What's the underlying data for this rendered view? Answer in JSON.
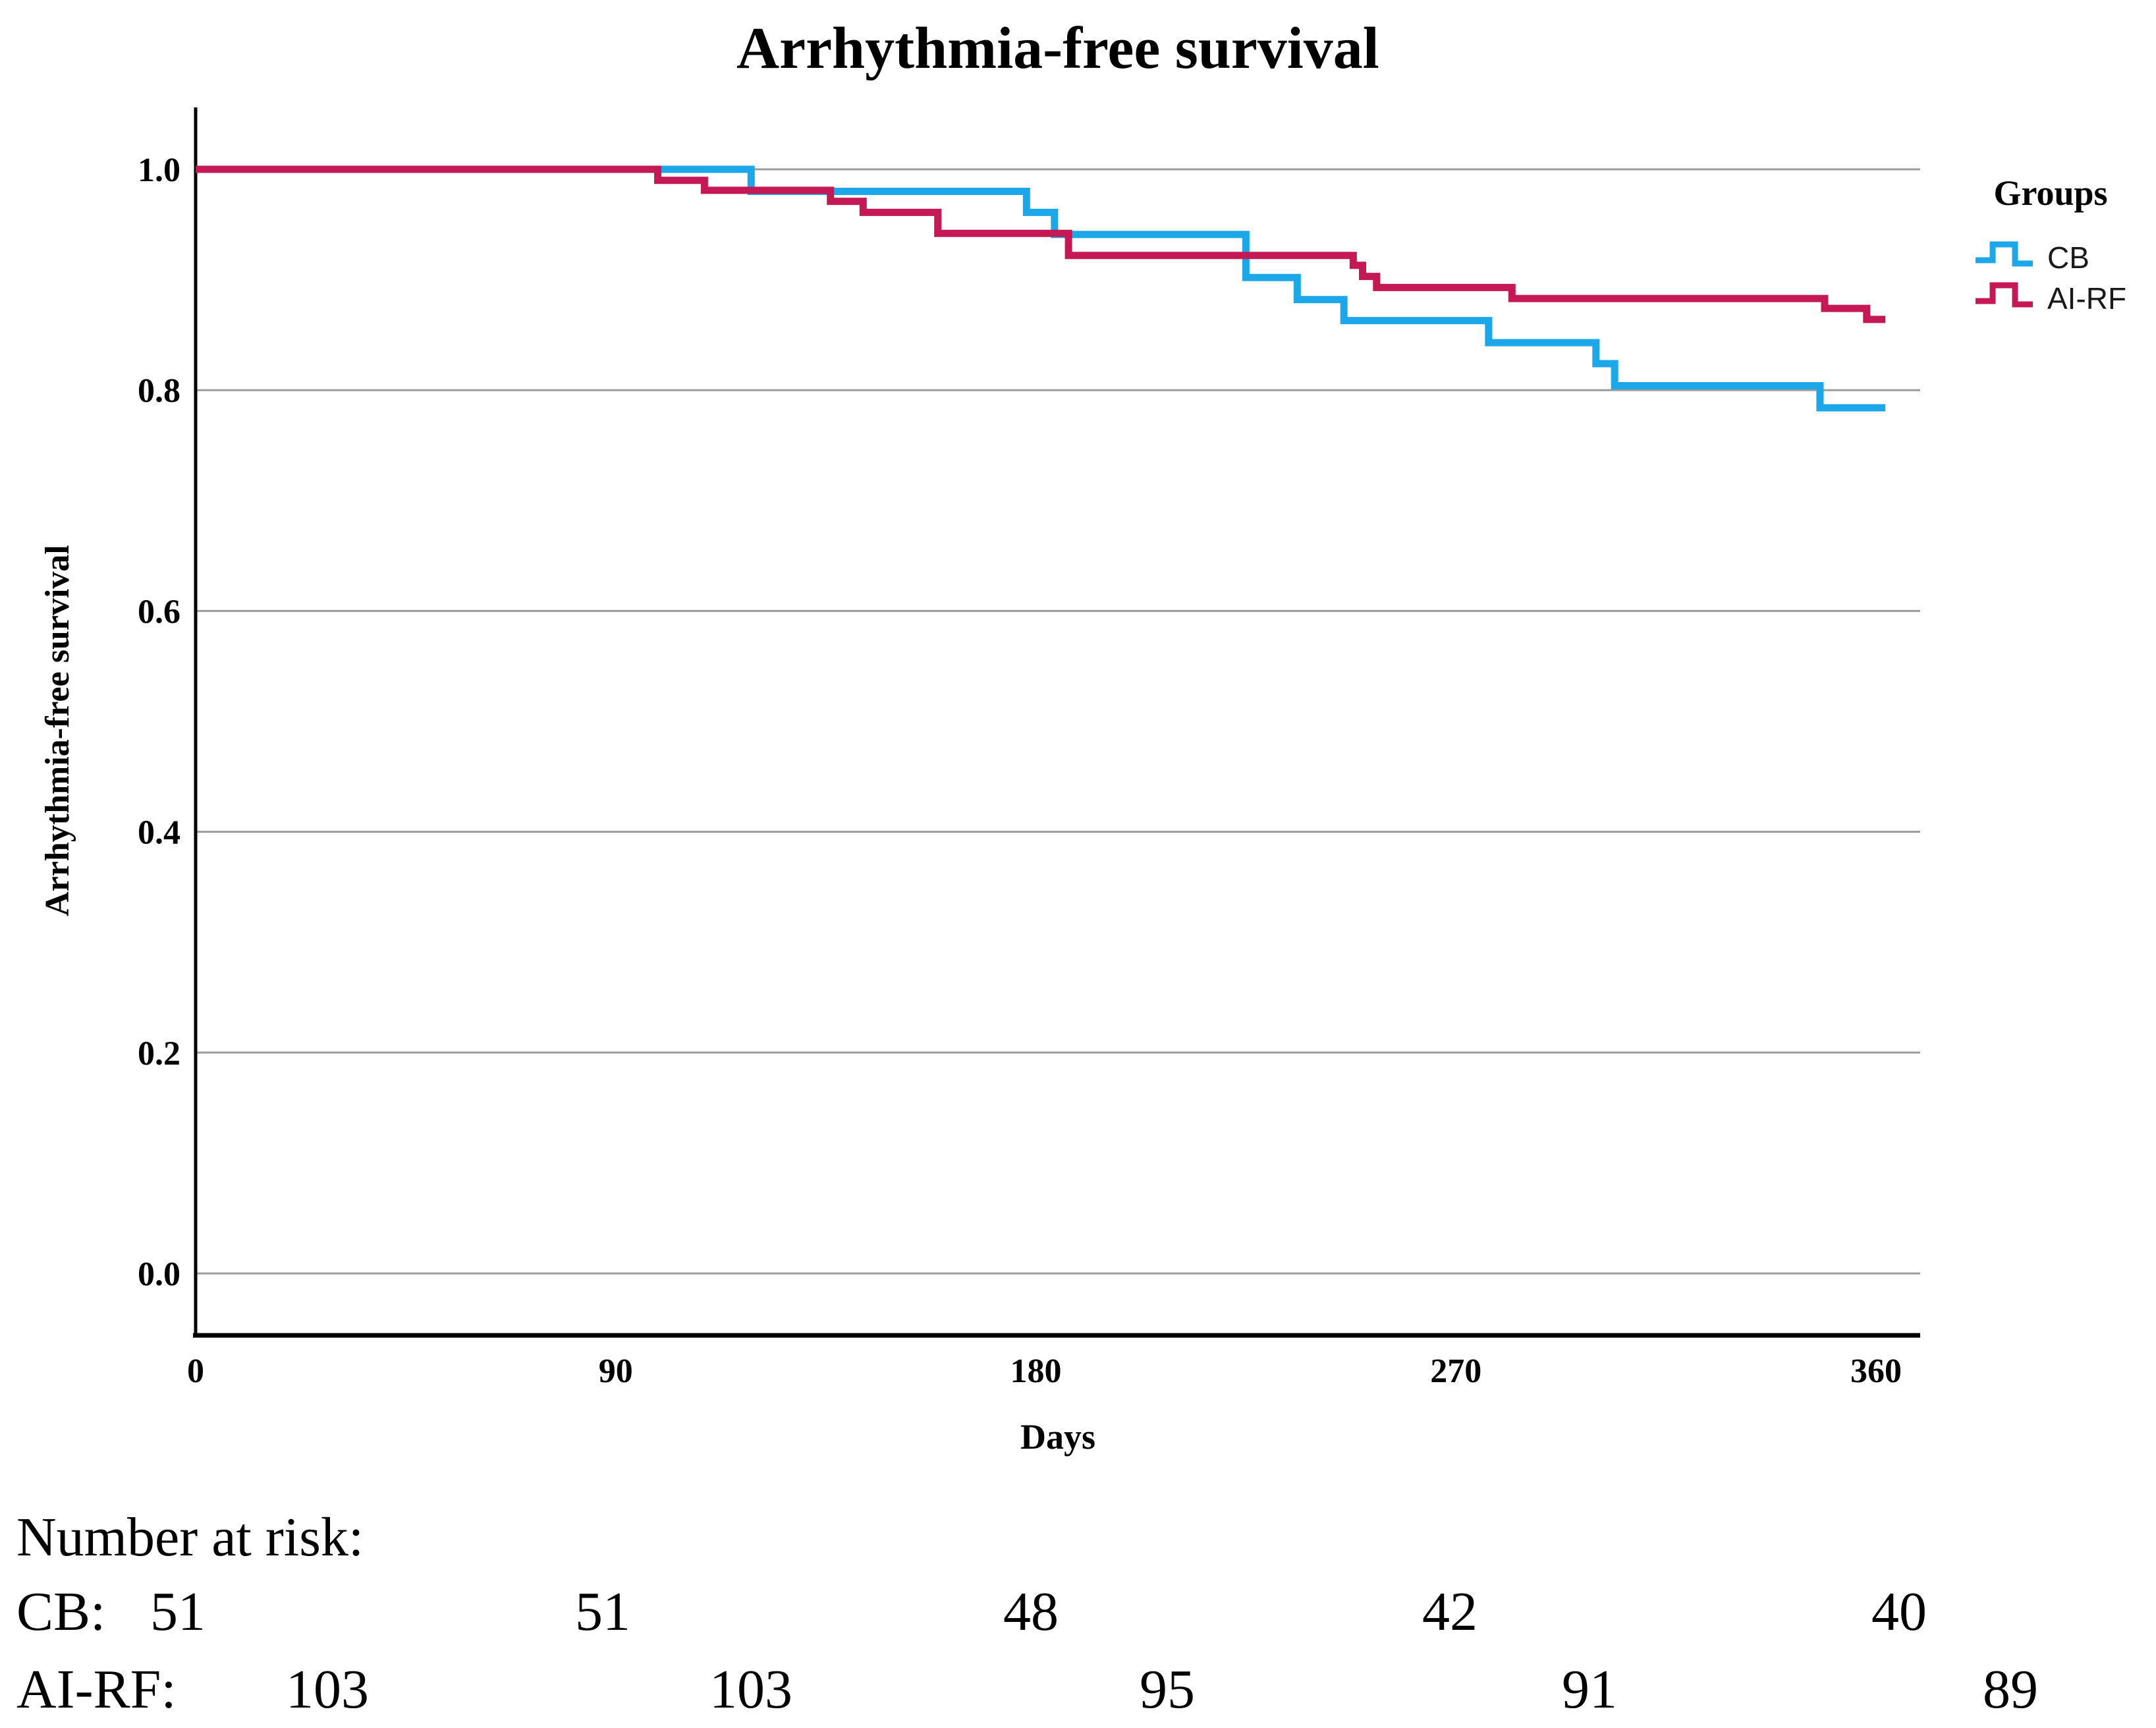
{
  "title": "Arrhythmia-free survival",
  "colors": {
    "cb": "#1CA7E8",
    "airf": "#C41954",
    "gridline": "#9C9C9C",
    "axis": "#000000",
    "text": "#000000"
  },
  "legend": {
    "title": "Groups",
    "items": [
      {
        "label": "CB",
        "color": "#1CA7E8"
      },
      {
        "label": "AI-RF",
        "color": "#C41954"
      }
    ]
  },
  "chart_data": {
    "type": "line",
    "subtype": "kaplan-meier-step",
    "title": "Arrhythmia-free survival",
    "xlabel": "Days",
    "ylabel": "Arrhythmia-free survival",
    "xlim": [
      0,
      369
    ],
    "ylim": [
      -0.055,
      1.055
    ],
    "xticks": [
      {
        "value": 0,
        "label": "0"
      },
      {
        "value": 90,
        "label": "90"
      },
      {
        "value": 180,
        "label": "180"
      },
      {
        "value": 270,
        "label": "270"
      },
      {
        "value": 360,
        "label": "360"
      }
    ],
    "yticks": [
      {
        "value": 1.0,
        "label": "1.0"
      },
      {
        "value": 0.8,
        "label": "0.8"
      },
      {
        "value": 0.6,
        "label": "0.6"
      },
      {
        "value": 0.4,
        "label": "0.4"
      },
      {
        "value": 0.2,
        "label": "0.2"
      },
      {
        "value": 0.0,
        "label": "0.0"
      }
    ],
    "grid": "horizontal",
    "legend_position": "right",
    "series": [
      {
        "name": "CB",
        "color": "#1CA7E8",
        "n_initial": 51,
        "curve_end_day": 362,
        "points": [
          [
            0,
            1.0
          ],
          [
            119,
            0.98
          ],
          [
            178,
            0.961
          ],
          [
            184,
            0.941
          ],
          [
            225,
            0.902
          ],
          [
            236,
            0.882
          ],
          [
            246,
            0.863
          ],
          [
            277,
            0.843
          ],
          [
            300,
            0.824
          ],
          [
            304,
            0.804
          ],
          [
            348,
            0.784
          ]
        ]
      },
      {
        "name": "AI-RF",
        "color": "#C41954",
        "n_initial": 103,
        "curve_end_day": 362,
        "points": [
          [
            0,
            1.0
          ],
          [
            99,
            0.99
          ],
          [
            109,
            0.981
          ],
          [
            136,
            0.971
          ],
          [
            143,
            0.961
          ],
          [
            159,
            0.942
          ],
          [
            187,
            0.922
          ],
          [
            248,
            0.913
          ],
          [
            250,
            0.903
          ],
          [
            253,
            0.893
          ],
          [
            282,
            0.883
          ],
          [
            349,
            0.874
          ],
          [
            358,
            0.864
          ]
        ]
      }
    ]
  },
  "number_at_risk": {
    "heading": "Number at risk:",
    "timepoints": [
      0,
      90,
      180,
      270,
      360
    ],
    "rows": [
      {
        "label": "CB:",
        "values": [
          "51",
          "51",
          "48",
          "42",
          "40"
        ]
      },
      {
        "label": "AI-RF:",
        "values": [
          "103",
          "103",
          "95",
          "91",
          "89"
        ]
      }
    ]
  }
}
